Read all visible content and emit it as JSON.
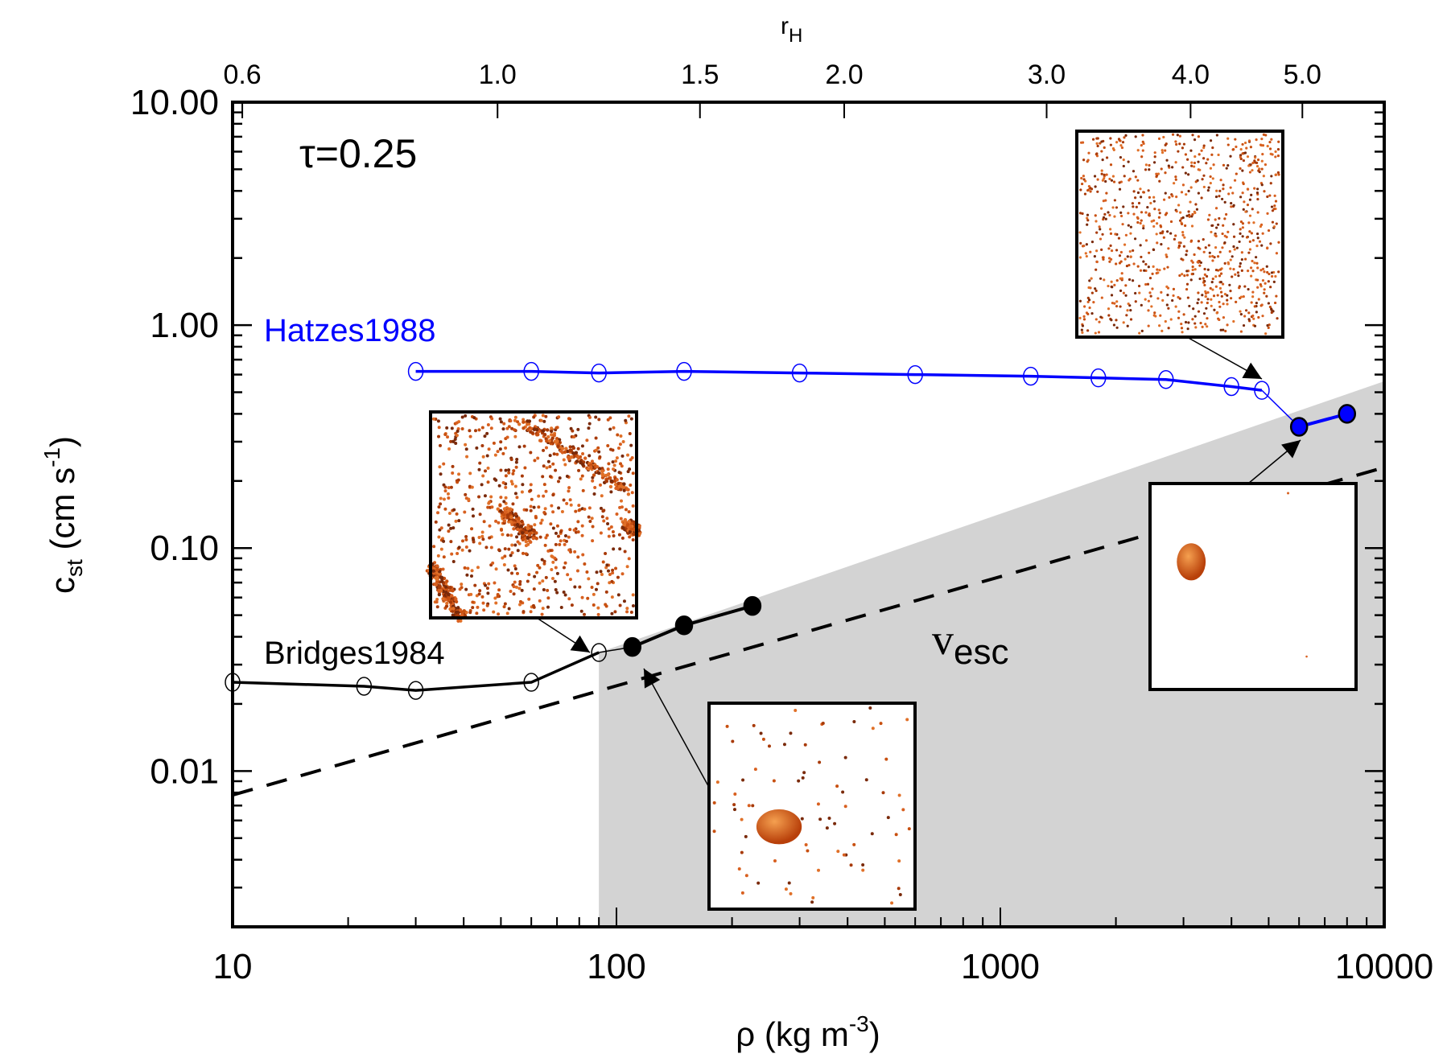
{
  "chart_data": {
    "type": "line",
    "title": "",
    "annotation_tau": "τ=0.25",
    "xlabel": "ρ (kg m",
    "xlabel_sup": "-3",
    "xlabel_end": ")",
    "ylabel": "c",
    "ylabel_sub": "st",
    "ylabel_mid": " (cm s",
    "ylabel_sup": "-1",
    "ylabel_end": ")",
    "x_scale": "log",
    "y_scale": "log",
    "xlim": [
      10,
      10000
    ],
    "ylim": [
      0.002,
      10
    ],
    "x_ticks": [
      {
        "value": 10,
        "label": "10"
      },
      {
        "value": 100,
        "label": "100"
      },
      {
        "value": 1000,
        "label": "1000"
      },
      {
        "value": 10000,
        "label": "10000"
      }
    ],
    "y_ticks": [
      {
        "value": 10,
        "label": "10.00"
      },
      {
        "value": 1,
        "label": "1.00"
      },
      {
        "value": 0.1,
        "label": "0.10"
      },
      {
        "value": 0.01,
        "label": "0.01"
      }
    ],
    "top_axis": {
      "label": "r",
      "label_sub": "H",
      "ticks": [
        {
          "rho": 10.6,
          "label": "0.6"
        },
        {
          "rho": 49,
          "label": "1.0"
        },
        {
          "rho": 165,
          "label": "1.5"
        },
        {
          "rho": 392,
          "label": "2.0"
        },
        {
          "rho": 1320,
          "label": "3.0"
        },
        {
          "rho": 3130,
          "label": "4.0"
        },
        {
          "rho": 6120,
          "label": "5.0"
        }
      ]
    },
    "series": [
      {
        "name": "Hatzes1988",
        "color": "#0000ff",
        "open_points": {
          "x": [
            30,
            60,
            90,
            150,
            300,
            600,
            1200,
            1800,
            2700,
            4000,
            4800
          ],
          "y": [
            0.62,
            0.62,
            0.61,
            0.62,
            0.61,
            0.6,
            0.59,
            0.58,
            0.57,
            0.53,
            0.51
          ]
        },
        "filled_points": {
          "x": [
            6000,
            8000
          ],
          "y": [
            0.35,
            0.4
          ]
        }
      },
      {
        "name": "Bridges1984",
        "color": "#000000",
        "open_points": {
          "x": [
            10,
            22,
            30,
            60,
            90
          ],
          "y": [
            0.025,
            0.024,
            0.023,
            0.025,
            0.034
          ]
        },
        "filled_points": {
          "x": [
            110,
            150,
            226
          ],
          "y": [
            0.036,
            0.045,
            0.055
          ]
        }
      }
    ],
    "v_esc_line": {
      "label": "v",
      "label_sub": "esc",
      "x": [
        10,
        10000
      ],
      "y": [
        0.0078,
        0.23
      ],
      "style": "dashed"
    },
    "shaded_region": {
      "color": "#d3d3d3",
      "x_start": 90,
      "x_end": 10000,
      "upper_y_at_start": 0.034,
      "upper_y_at_end": 0.56
    },
    "insets": [
      {
        "name": "dispersed-particles",
        "description": "uniformly scattered particles"
      },
      {
        "name": "wake-bands",
        "description": "particles with diagonal gravity-wake bands"
      },
      {
        "name": "clump-sparse",
        "description": "single aggregate with sparse particles"
      },
      {
        "name": "clump-isolated",
        "description": "single aggregate, nearly empty field"
      }
    ],
    "grid": false,
    "legend": "inline-labels"
  }
}
